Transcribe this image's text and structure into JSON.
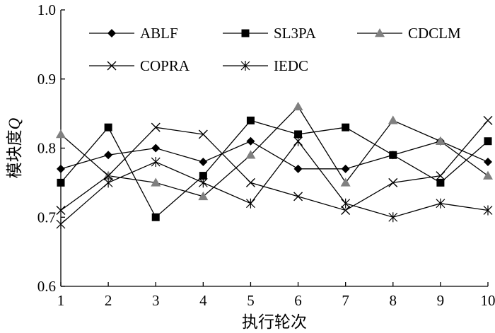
{
  "chart_data": {
    "type": "line",
    "title": "",
    "xlabel": "执行轮次",
    "ylabel": "模块度Q",
    "ylabel_parts": {
      "text": "模块度",
      "italic": "Q"
    },
    "x": [
      1,
      2,
      3,
      4,
      5,
      6,
      7,
      8,
      9,
      10
    ],
    "x_tick_labels": [
      "1",
      "2",
      "3",
      "4",
      "5",
      "6",
      "7",
      "8",
      "9",
      "10"
    ],
    "xlim": [
      1,
      10
    ],
    "ylim": [
      0.6,
      1.0
    ],
    "y_ticks": [
      0.6,
      0.7,
      0.8,
      0.9,
      1.0
    ],
    "y_tick_labels": [
      "0.6",
      "0.7",
      "0.8",
      "0.9",
      "1.0"
    ],
    "grid": false,
    "legend_placement": "top",
    "series": [
      {
        "name": "ABLF",
        "marker": "diamond",
        "values": [
          0.77,
          0.79,
          0.8,
          0.78,
          0.81,
          0.77,
          0.77,
          0.79,
          0.81,
          0.78
        ]
      },
      {
        "name": "SL3PA",
        "marker": "square",
        "values": [
          0.75,
          0.83,
          0.7,
          0.76,
          0.84,
          0.82,
          0.83,
          0.79,
          0.75,
          0.81
        ]
      },
      {
        "name": "CDCLM",
        "marker": "triangle",
        "values": [
          0.82,
          0.76,
          0.75,
          0.73,
          0.79,
          0.86,
          0.75,
          0.84,
          0.81,
          0.76
        ]
      },
      {
        "name": "COPRA",
        "marker": "x",
        "values": [
          0.71,
          0.76,
          0.83,
          0.82,
          0.75,
          0.73,
          0.71,
          0.75,
          0.76,
          0.84
        ]
      },
      {
        "name": "IEDC",
        "marker": "star",
        "values": [
          0.69,
          0.75,
          0.78,
          0.75,
          0.72,
          0.81,
          0.72,
          0.7,
          0.72,
          0.71
        ]
      }
    ]
  }
}
